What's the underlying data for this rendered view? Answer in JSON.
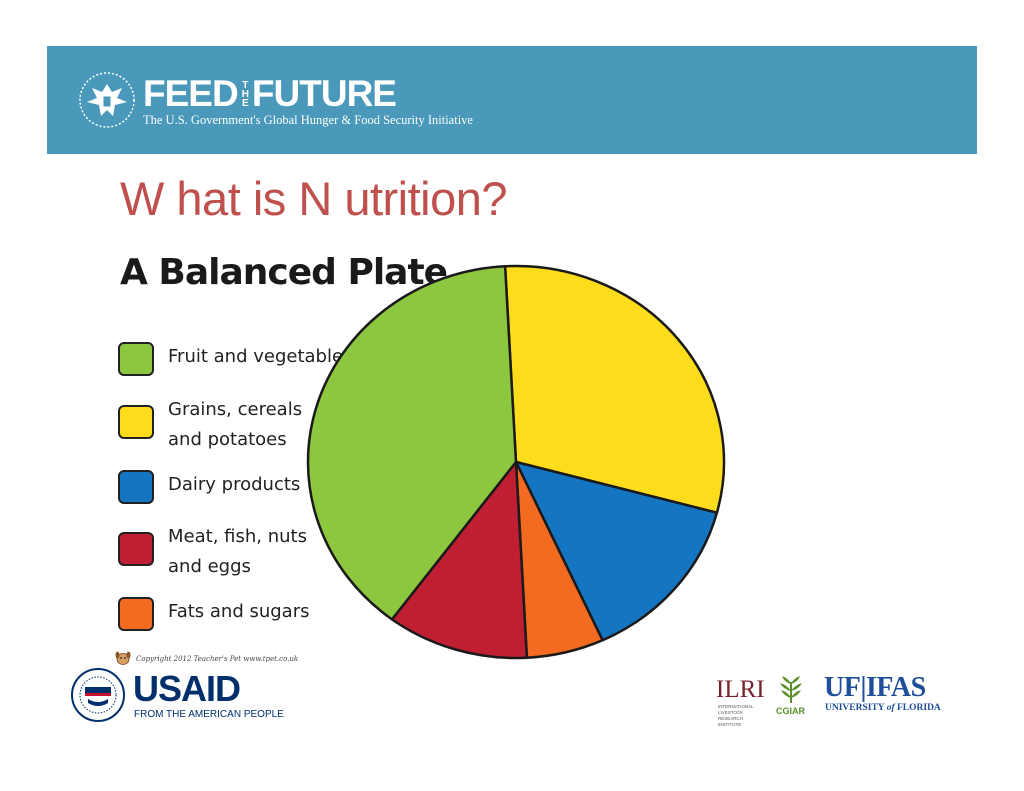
{
  "header": {
    "feed": "FEED",
    "the_t": "T",
    "the_h": "H",
    "the_e": "E",
    "future": "FUTURE",
    "tagline": "The U.S. Government's Global Hunger & Food Security Initiative"
  },
  "page_title": "W hat is N utrition?",
  "chart_data": {
    "type": "pie",
    "title": "A Balanced Plate",
    "start_angle_deg": -3,
    "slices": [
      {
        "label": "Grains, cereals and potatoes",
        "value": 30,
        "color": "#fddc1c"
      },
      {
        "label": "Dairy products",
        "value": 14,
        "color": "#1476c2"
      },
      {
        "label": "Fats and sugars",
        "value": 6,
        "color": "#f26b21"
      },
      {
        "label": "Meat, fish, nuts and eggs",
        "value": 11,
        "color": "#c01e33"
      },
      {
        "label": "Fruit and vegetables",
        "value": 39,
        "color": "#8dc63f"
      }
    ],
    "legend": [
      {
        "line1": "Fruit and vegetables",
        "line2": "",
        "color": "#8dc63f"
      },
      {
        "line1": "Grains, cereals",
        "line2": "and potatoes",
        "color": "#fddc1c"
      },
      {
        "line1": "Dairy products",
        "line2": "",
        "color": "#1476c2"
      },
      {
        "line1": "Meat, fish, nuts",
        "line2": "and eggs",
        "color": "#c01e33"
      },
      {
        "line1": "Fats and sugars",
        "line2": "",
        "color": "#f26b21"
      }
    ],
    "legend_placement": "left"
  },
  "copyright": "Copyright 2012 Teacher's Pet www.tpet.co.uk",
  "footer": {
    "usaid_name": "USAID",
    "usaid_tagline": "FROM THE AMERICAN PEOPLE",
    "ilri_name": "ILRI",
    "ilri_sub": "INTERNATIONAL LIVESTOCK RESEARCH INSTITUTE",
    "cgiar_name": "CGIAR",
    "ufifas_name": "UF|IFAS",
    "ufifas_sub_a": "UNIVERSITY ",
    "ufifas_sub_b": "of",
    "ufifas_sub_c": " FLORIDA"
  }
}
